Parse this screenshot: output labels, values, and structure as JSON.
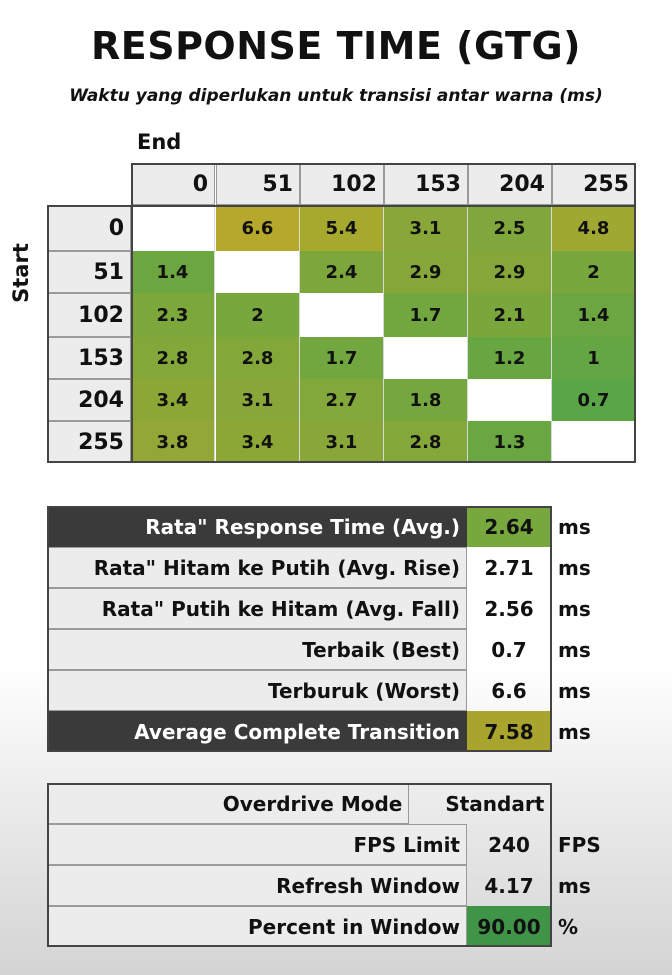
{
  "title": "RESPONSE TIME (GTG)",
  "subtitle": "Waktu yang diperlukan untuk transisi antar warna (ms)",
  "end_label": "End",
  "start_label": "Start",
  "chart_data": {
    "type": "heatmap",
    "x_label": "End",
    "y_label": "Start",
    "columns": [
      "0",
      "51",
      "102",
      "153",
      "204",
      "255"
    ],
    "rows": [
      "0",
      "51",
      "102",
      "153",
      "204",
      "255"
    ],
    "values": [
      [
        null,
        6.6,
        5.4,
        3.1,
        2.5,
        4.8
      ],
      [
        1.4,
        null,
        2.4,
        2.9,
        2.9,
        2
      ],
      [
        2.3,
        2,
        null,
        1.7,
        2.1,
        1.4
      ],
      [
        2.8,
        2.8,
        1.7,
        null,
        1.2,
        1
      ],
      [
        3.4,
        3.1,
        2.7,
        1.8,
        null,
        0.7
      ],
      [
        3.8,
        3.4,
        3.1,
        2.8,
        1.3,
        null
      ]
    ]
  },
  "summary": [
    {
      "label": "Rata\" Response Time (Avg.)",
      "value": "2.64",
      "unit": "ms",
      "dark": true,
      "highlight": "#77a83e"
    },
    {
      "label": "Rata\" Hitam ke Putih (Avg. Rise)",
      "value": "2.71",
      "unit": "ms",
      "dark": false,
      "highlight": ""
    },
    {
      "label": "Rata\" Putih ke Hitam (Avg. Fall)",
      "value": "2.56",
      "unit": "ms",
      "dark": false,
      "highlight": ""
    },
    {
      "label": "Terbaik (Best)",
      "value": "0.7",
      "unit": "ms",
      "dark": false,
      "highlight": ""
    },
    {
      "label": "Terburuk (Worst)",
      "value": "6.6",
      "unit": "ms",
      "dark": false,
      "highlight": ""
    },
    {
      "label": "Average Complete Transition",
      "value": "7.58",
      "unit": "ms",
      "dark": true,
      "highlight": "#a9a42d"
    }
  ],
  "settings": [
    {
      "label": "Overdrive Mode",
      "value": "Standart",
      "unit": "",
      "highlight": ""
    },
    {
      "label": "FPS Limit",
      "value": "240",
      "unit": "FPS",
      "highlight": ""
    },
    {
      "label": "Refresh Window",
      "value": "4.17",
      "unit": "ms",
      "highlight": ""
    },
    {
      "label": "Percent in Window",
      "value": "90.00",
      "unit": "%",
      "highlight": "#3f9448"
    }
  ],
  "colors": {
    "good": "#5aa646",
    "bad": "#b5a82a",
    "header_bg": "#ececec",
    "dark_label": "#3a3a3a"
  }
}
